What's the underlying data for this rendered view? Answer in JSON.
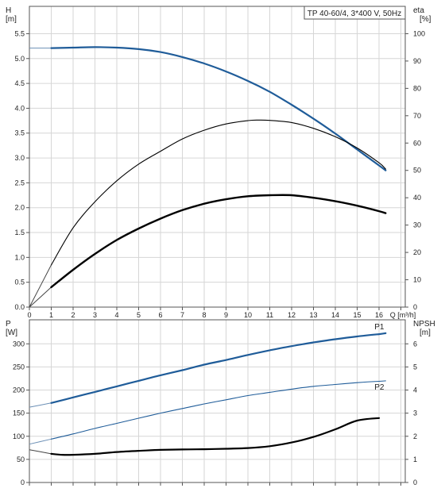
{
  "chart_data": [
    {
      "type": "line",
      "title": "TP 40-60/4, 3*400 V, 50Hz",
      "xlabel": "Q [m³/h]",
      "ylabel_left": [
        "H",
        "[m]"
      ],
      "ylabel_right": [
        "eta",
        "[%]"
      ],
      "x_ticks": [
        "0",
        "1",
        "2",
        "3",
        "4",
        "5",
        "6",
        "7",
        "8",
        "9",
        "10",
        "11",
        "12",
        "13",
        "14",
        "15",
        "16"
      ],
      "y_left_ticks": [
        "0.0",
        "0.5",
        "1.0",
        "1.5",
        "2.0",
        "2.5",
        "3.0",
        "3.5",
        "4.0",
        "4.5",
        "5.0",
        "5.5"
      ],
      "y_right_ticks": [
        "0",
        "10",
        "20",
        "30",
        "40",
        "50",
        "60",
        "70",
        "80",
        "90",
        "100"
      ],
      "xlim": [
        0,
        17.2
      ],
      "ylim_left": [
        0,
        6.05
      ],
      "ylim_right": [
        0,
        110
      ],
      "grid": true,
      "colors": {
        "head": "#1f5c99",
        "eta": "#000000",
        "extension": "#6b8fb5",
        "grid": "#d0d0d0"
      },
      "series": [
        {
          "axis": "left",
          "x": [
            0,
            1,
            2,
            3,
            4,
            5,
            6,
            7,
            8,
            9,
            10,
            11,
            12,
            13,
            14,
            15,
            16,
            16.3
          ],
          "values": [
            5.21,
            5.21,
            5.22,
            5.23,
            5.22,
            5.19,
            5.13,
            5.03,
            4.9,
            4.74,
            4.55,
            4.33,
            4.07,
            3.79,
            3.49,
            3.17,
            2.85,
            2.75
          ]
        },
        {
          "axis": "right",
          "x": [
            0,
            1,
            2,
            3,
            4,
            5,
            6,
            7,
            8,
            9,
            10,
            10.5,
            11,
            12,
            13,
            14,
            15,
            16,
            16.3
          ],
          "values": [
            0,
            15.4,
            29,
            38.5,
            46.2,
            52.3,
            57,
            61.5,
            64.7,
            67,
            68.2,
            68.4,
            68.3,
            67.5,
            65.4,
            62.3,
            58.2,
            52.8,
            50.5
          ]
        },
        {
          "axis": "left",
          "x": [
            0,
            1,
            2,
            3,
            4,
            5,
            6,
            7,
            8,
            9,
            10,
            11,
            12,
            13,
            14,
            15,
            16,
            16.3
          ],
          "values": [
            0,
            0.4,
            0.75,
            1.07,
            1.35,
            1.58,
            1.78,
            1.95,
            2.08,
            2.17,
            2.23,
            2.25,
            2.25,
            2.2,
            2.13,
            2.04,
            1.93,
            1.89
          ]
        }
      ]
    },
    {
      "type": "line",
      "title": "",
      "xlabel": "",
      "ylabel_left": [
        "P",
        "[W]"
      ],
      "ylabel_right": [
        "NPSH",
        "[m]"
      ],
      "y_left_ticks": [
        "0",
        "50",
        "100",
        "150",
        "200",
        "250",
        "300"
      ],
      "y_right_ticks": [
        "0",
        "1",
        "2",
        "3",
        "4",
        "5",
        "6"
      ],
      "xlim": [
        0,
        17.2
      ],
      "ylim_left": [
        0,
        352
      ],
      "ylim_right": [
        0,
        7.04
      ],
      "grid": true,
      "colors": {
        "p1": "#1f5c99",
        "p2": "#1f5c99",
        "npsh": "#000000",
        "extension": "#6b8fb5",
        "grid": "#d0d0d0"
      },
      "series": [
        {
          "name": "P1",
          "axis": "left",
          "x": [
            0,
            1,
            2,
            3,
            4,
            5,
            6,
            7,
            8,
            9,
            10,
            11,
            12,
            13,
            14,
            15,
            16,
            16.3
          ],
          "values": [
            163,
            172,
            184,
            196,
            208,
            220,
            232,
            243,
            255,
            265,
            276,
            286,
            295,
            303,
            310,
            316,
            321,
            323
          ]
        },
        {
          "name": "P2",
          "axis": "left",
          "x": [
            0,
            1,
            2,
            3,
            4,
            5,
            6,
            7,
            8,
            9,
            10,
            11,
            12,
            13,
            14,
            15,
            16,
            16.3
          ],
          "values": [
            83,
            94,
            105,
            117,
            128,
            139,
            150,
            160,
            170,
            179,
            188,
            195,
            202,
            208,
            212,
            216,
            219,
            220
          ]
        },
        {
          "axis": "right",
          "x": [
            0,
            1,
            1.5,
            2,
            3,
            4,
            5,
            6,
            7,
            8,
            9,
            10,
            11,
            12,
            13,
            14,
            15,
            16
          ],
          "values": [
            1.42,
            1.24,
            1.2,
            1.2,
            1.24,
            1.32,
            1.37,
            1.41,
            1.43,
            1.44,
            1.46,
            1.49,
            1.57,
            1.73,
            1.97,
            2.3,
            2.68,
            2.79
          ]
        }
      ]
    }
  ]
}
